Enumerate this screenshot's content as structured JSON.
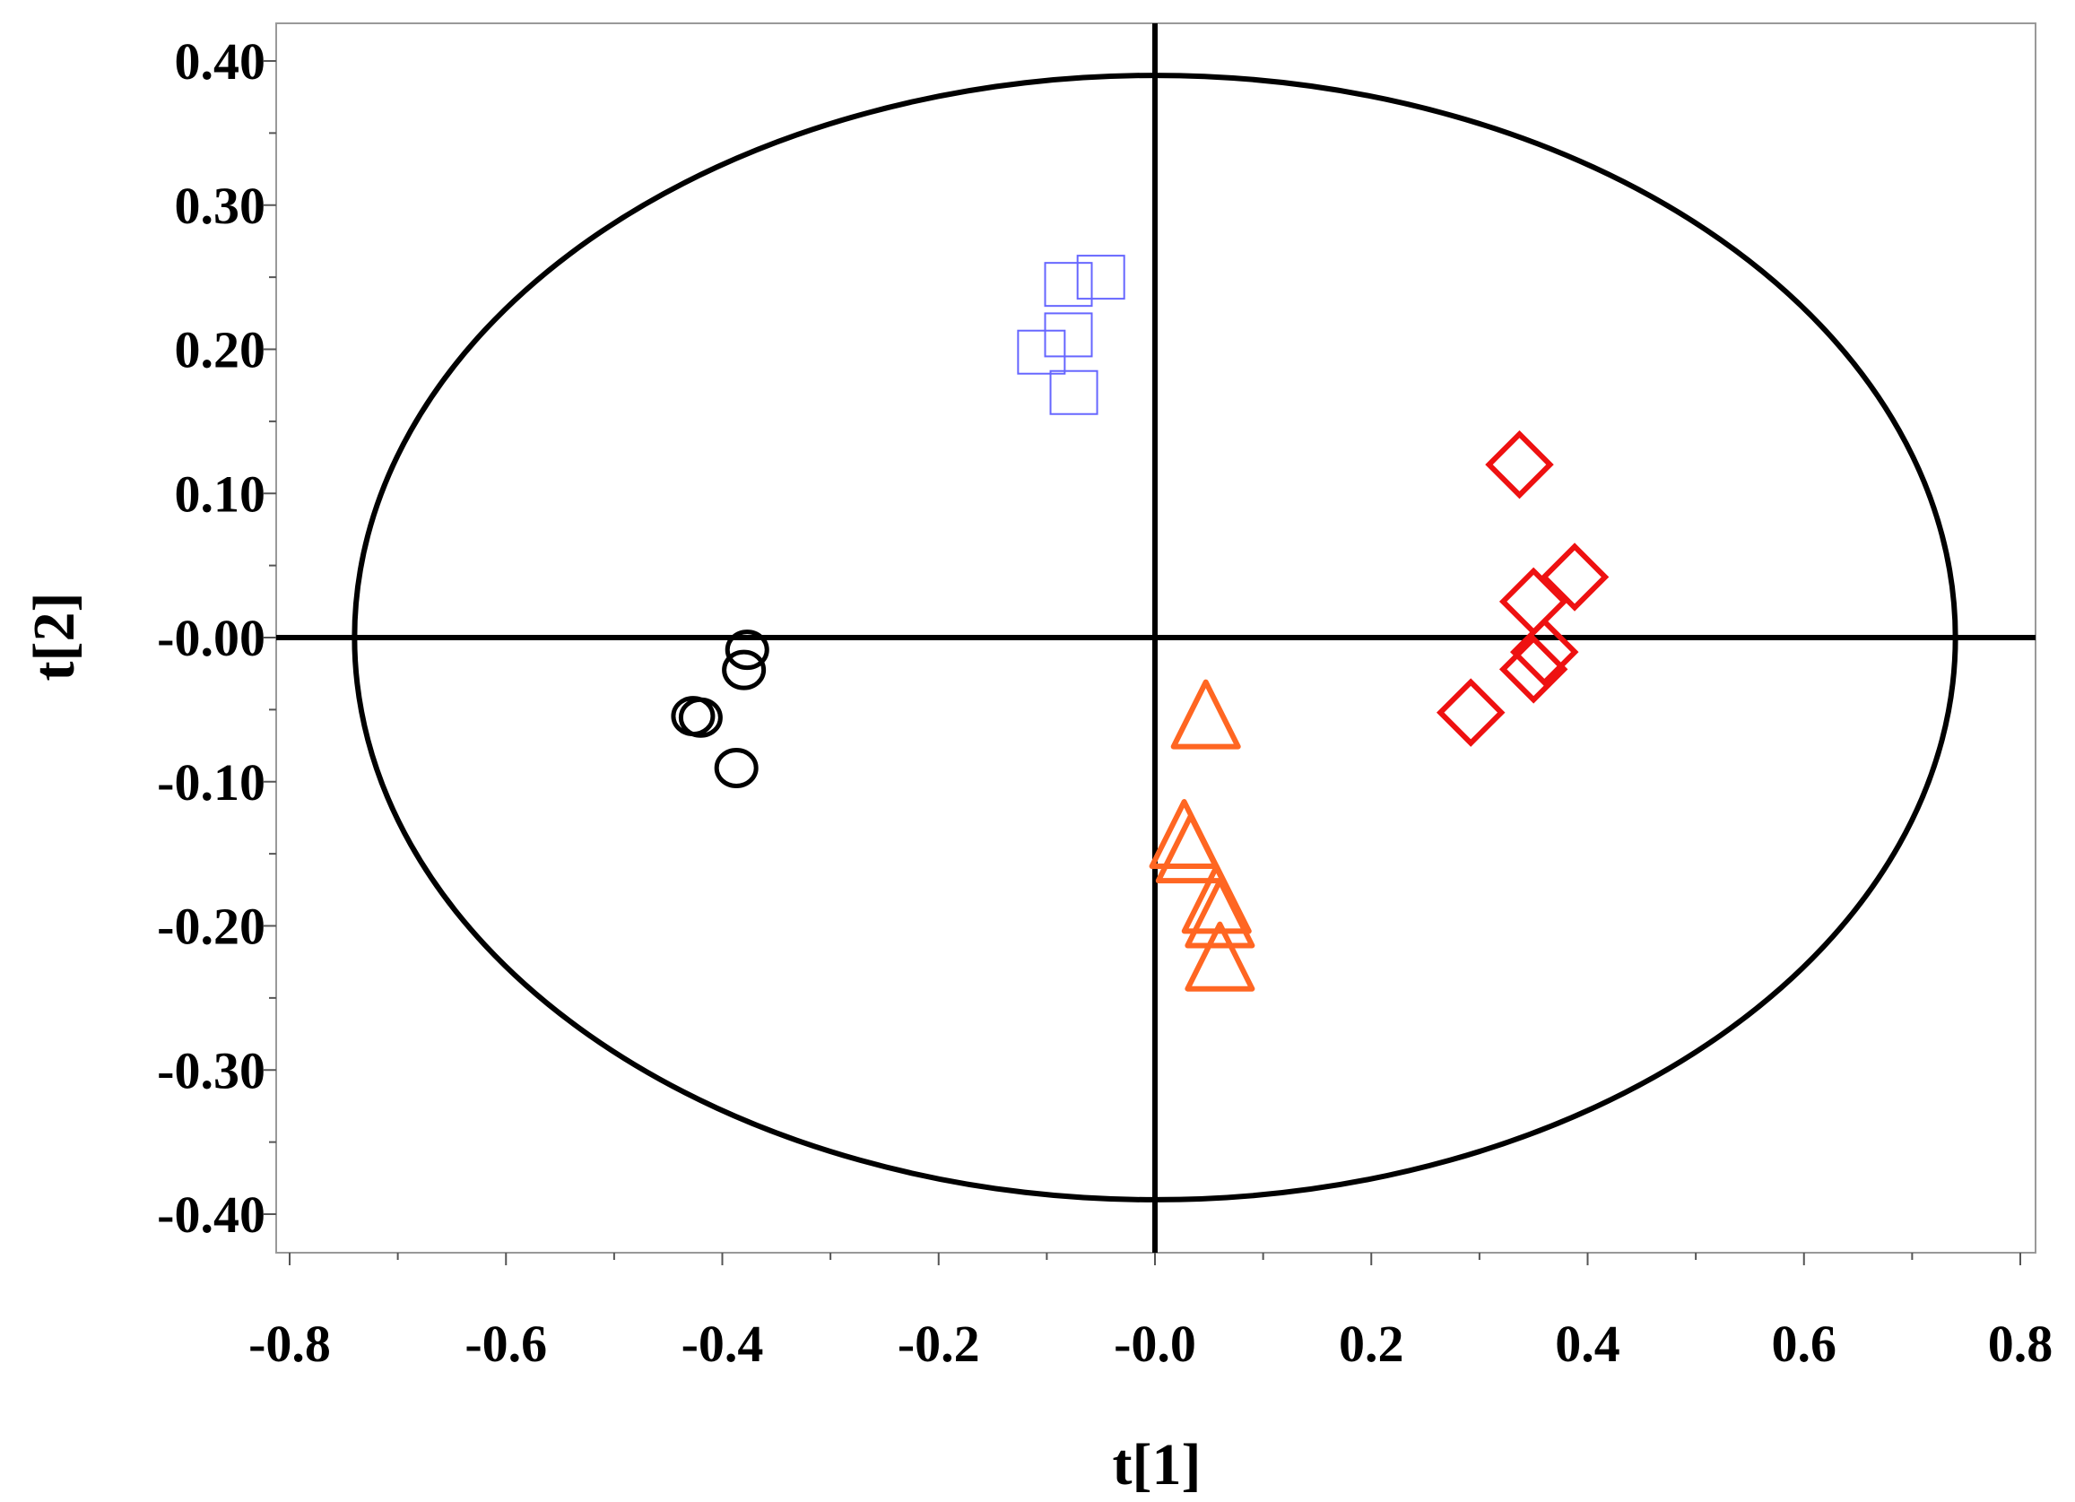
{
  "chart_data": {
    "type": "scatter",
    "title": "",
    "xlabel": "t[1]",
    "ylabel": "t[2]",
    "xlim": [
      -0.8,
      0.8
    ],
    "ylim": [
      -0.42,
      0.42
    ],
    "x_ticks": [
      -0.8,
      -0.6,
      -0.4,
      -0.2,
      0.0,
      0.2,
      0.4,
      0.6,
      0.8
    ],
    "x_tick_labels": [
      "-0.8",
      "-0.6",
      "-0.4",
      "-0.2",
      "-0.0",
      "0.2",
      "0.4",
      "0.6",
      "0.8"
    ],
    "y_ticks": [
      0.4,
      0.3,
      0.2,
      0.1,
      0.0,
      -0.1,
      -0.2,
      -0.3,
      -0.4
    ],
    "y_tick_labels": [
      "0.40",
      "0.30",
      "0.20",
      "0.10",
      "-0.00",
      "-0.10",
      "-0.20",
      "-0.30",
      "-0.40"
    ],
    "grid": false,
    "zero_lines": true,
    "confidence_ellipse": {
      "x_radius": 0.74,
      "y_radius": 0.39
    },
    "series": [
      {
        "marker": "circle",
        "color": "#000000",
        "points": [
          [
            -0.377,
            -0.006
          ],
          [
            -0.38,
            -0.02
          ],
          [
            -0.427,
            -0.052
          ],
          [
            -0.42,
            -0.053
          ],
          [
            -0.387,
            -0.088
          ]
        ]
      },
      {
        "marker": "square",
        "color": "#6666ff",
        "points": [
          [
            -0.05,
            0.25
          ],
          [
            -0.08,
            0.245
          ],
          [
            -0.08,
            0.21
          ],
          [
            -0.105,
            0.198
          ],
          [
            -0.075,
            0.17
          ]
        ]
      },
      {
        "marker": "diamond",
        "color": "#ee1111",
        "points": [
          [
            0.337,
            0.12
          ],
          [
            0.388,
            0.042
          ],
          [
            0.35,
            0.025
          ],
          [
            0.36,
            -0.01
          ],
          [
            0.35,
            -0.022
          ],
          [
            0.292,
            -0.052
          ]
        ]
      },
      {
        "marker": "triangle",
        "color": "#ff6622",
        "points": [
          [
            0.047,
            -0.057
          ],
          [
            0.027,
            -0.14
          ],
          [
            0.033,
            -0.15
          ],
          [
            0.057,
            -0.185
          ],
          [
            0.06,
            -0.195
          ],
          [
            0.06,
            -0.225
          ]
        ]
      }
    ]
  }
}
